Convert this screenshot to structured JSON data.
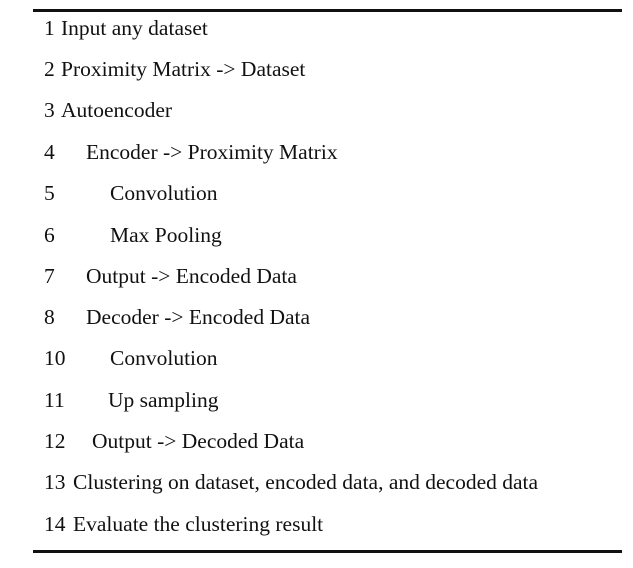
{
  "lines": [
    {
      "num": "1",
      "text": "Input any dataset"
    },
    {
      "num": "2",
      "text": "Proximity Matrix -> Dataset"
    },
    {
      "num": "3",
      "text": "Autoencoder"
    },
    {
      "num": "4",
      "text": "Encoder -> Proximity Matrix"
    },
    {
      "num": "5",
      "text": "Convolution"
    },
    {
      "num": "6",
      "text": "Max Pooling"
    },
    {
      "num": "7",
      "text": "Output -> Encoded Data"
    },
    {
      "num": "8",
      "text": "Decoder -> Encoded Data"
    },
    {
      "num": "10",
      "text": "Convolution"
    },
    {
      "num": "11",
      "text": "Up sampling"
    },
    {
      "num": "12",
      "text": "Output -> Decoded Data"
    },
    {
      "num": "13",
      "text": "Clustering on dataset, encoded data, and decoded data"
    },
    {
      "num": "14",
      "text": "Evaluate the clustering result"
    }
  ]
}
